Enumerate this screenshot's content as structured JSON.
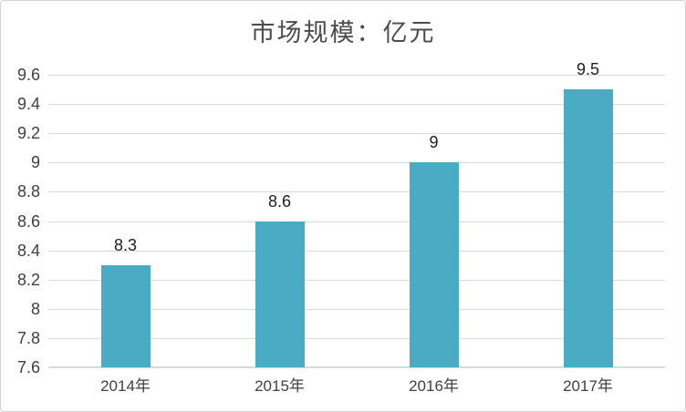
{
  "chart_data": {
    "type": "bar",
    "title": "市场规模：亿元",
    "categories": [
      "2014年",
      "2015年",
      "2016年",
      "2017年"
    ],
    "values": [
      8.3,
      8.6,
      9,
      9.5
    ],
    "value_labels": [
      "8.3",
      "8.6",
      "9",
      "9.5"
    ],
    "ylim": [
      7.6,
      9.6
    ],
    "ytick_step": 0.2,
    "ytick_labels_top_to_bottom": [
      "9.6",
      "9.4",
      "9.2",
      "9",
      "8.8",
      "8.6",
      "8.4",
      "8.2",
      "8",
      "7.8",
      "7.6"
    ],
    "xlabel": "",
    "ylabel": "",
    "grid": true,
    "legend": "none",
    "colors": {
      "bar_fill": "#4aabc5",
      "gridline": "#d9d9d9",
      "axis_line": "#d9d9d9",
      "tick_label": "#404040",
      "data_label": "#1f1f1f",
      "title": "#4c4c4c",
      "background": "#ffffff",
      "border": "#d2d2d2"
    }
  }
}
